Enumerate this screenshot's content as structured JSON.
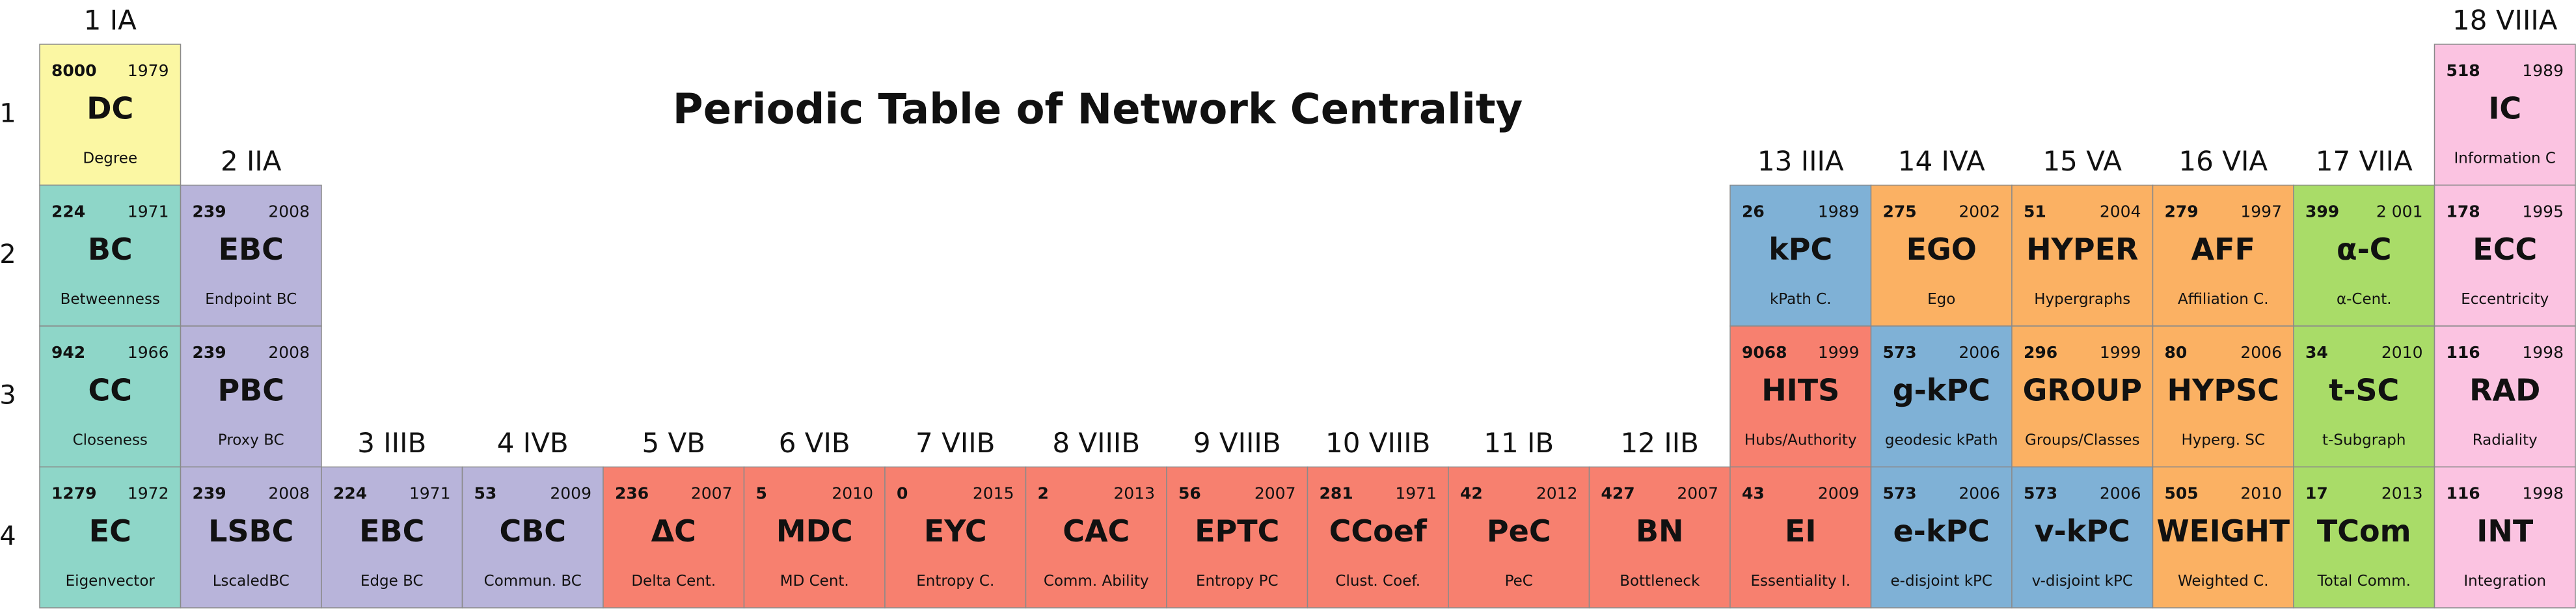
{
  "title": "Periodic Table of Network Centrality",
  "groups": [
    "1 IA",
    "2 IIA",
    "3 IIIB",
    "4 IVB",
    "5 VB",
    "6 VIB",
    "7 VIIB",
    "8 VIIIB",
    "9 VIIIB",
    "10 VIIIB",
    "11 IB",
    "12 IIB",
    "13 IIIA",
    "14 IVA",
    "15 VA",
    "16 VIA",
    "17 VIIA",
    "18 VIIIA"
  ],
  "periods": [
    {
      "label": 1,
      "cells": [
        {
          "count": 8000,
          "year": 1979,
          "symbol": "DC",
          "name": "Degree",
          "color": "#fbf7a3"
        },
        null,
        null,
        null,
        null,
        null,
        null,
        null,
        null,
        null,
        null,
        null,
        null,
        null,
        null,
        null,
        null,
        {
          "count": 518,
          "year": 1989,
          "symbol": "IC",
          "name": "Information C",
          "color": "#fbc3e1"
        }
      ]
    },
    {
      "label": 2,
      "cells": [
        {
          "count": 224,
          "year": 1971,
          "symbol": "BC",
          "name": "Betweenness",
          "color": "#8ed6c8"
        },
        {
          "count": 239,
          "year": 2008,
          "symbol": "EBC",
          "name": "Endpoint BC",
          "color": "#b8b4da"
        },
        null,
        null,
        null,
        null,
        null,
        null,
        null,
        null,
        null,
        null,
        {
          "count": 26,
          "year": 1989,
          "symbol": "kPC",
          "name": "kPath C.",
          "color": "#7fb1d6"
        },
        {
          "count": 275,
          "year": 2002,
          "symbol": "EGO",
          "name": "Ego",
          "color": "#fbb163"
        },
        {
          "count": 51,
          "year": 2004,
          "symbol": "HYPER",
          "name": "Hypergraphs",
          "color": "#fbb163"
        },
        {
          "count": 279,
          "year": 1997,
          "symbol": "AFF",
          "name": "Affiliation C.",
          "color": "#fbb163"
        },
        {
          "count": 399,
          "year": "2 001",
          "symbol": "α-C",
          "name": "α-Cent.",
          "color": "#a9dc68"
        },
        {
          "count": 178,
          "year": 1995,
          "symbol": "ECC",
          "name": "Eccentricity",
          "color": "#fbc3e1"
        }
      ]
    },
    {
      "label": 3,
      "cells": [
        {
          "count": 942,
          "year": 1966,
          "symbol": "CC",
          "name": "Closeness",
          "color": "#8ed6c8"
        },
        {
          "count": 239,
          "year": 2008,
          "symbol": "PBC",
          "name": "Proxy BC",
          "color": "#b8b4da"
        },
        null,
        null,
        null,
        null,
        null,
        null,
        null,
        null,
        null,
        null,
        {
          "count": 9068,
          "year": 1999,
          "symbol": "HITS",
          "name": "Hubs/Authority",
          "color": "#f7806f"
        },
        {
          "count": 573,
          "year": 2006,
          "symbol": "g-kPC",
          "name": "geodesic kPath",
          "color": "#7fb1d6"
        },
        {
          "count": 296,
          "year": 1999,
          "symbol": "GROUP",
          "name": "Groups/Classes",
          "color": "#fbb163"
        },
        {
          "count": 80,
          "year": 2006,
          "symbol": "HYPSC",
          "name": "Hyperg. SC",
          "color": "#fbb163"
        },
        {
          "count": 34,
          "year": 2010,
          "symbol": "t-SC",
          "name": "t-Subgraph",
          "color": "#a9dc68"
        },
        {
          "count": 116,
          "year": 1998,
          "symbol": "RAD",
          "name": "Radiality",
          "color": "#fbc3e1"
        }
      ]
    },
    {
      "label": 4,
      "cells": [
        {
          "count": 1279,
          "year": 1972,
          "symbol": "EC",
          "name": "Eigenvector",
          "color": "#8ed6c8"
        },
        {
          "count": 239,
          "year": 2008,
          "symbol": "LSBC",
          "name": "LscaledBC",
          "color": "#b8b4da"
        },
        {
          "count": 224,
          "year": 1971,
          "symbol": "EBC",
          "name": "Edge BC",
          "color": "#b8b4da"
        },
        {
          "count": 53,
          "year": 2009,
          "symbol": "CBC",
          "name": "Commun. BC",
          "color": "#b8b4da"
        },
        {
          "count": 236,
          "year": 2007,
          "symbol": "ΔC",
          "name": "Delta Cent.",
          "color": "#f7806f"
        },
        {
          "count": 5,
          "year": 2010,
          "symbol": "MDC",
          "name": "MD Cent.",
          "color": "#f7806f"
        },
        {
          "count": 0,
          "year": 2015,
          "symbol": "EYC",
          "name": "Entropy C.",
          "color": "#f7806f"
        },
        {
          "count": 2,
          "year": 2013,
          "symbol": "CAC",
          "name": "Comm. Ability",
          "color": "#f7806f"
        },
        {
          "count": 56,
          "year": 2007,
          "symbol": "EPTC",
          "name": "Entropy PC",
          "color": "#f7806f"
        },
        {
          "count": 281,
          "year": 1971,
          "symbol": "CCoef",
          "name": "Clust. Coef.",
          "color": "#f7806f"
        },
        {
          "count": 42,
          "year": 2012,
          "symbol": "PeC",
          "name": "PeC",
          "color": "#f7806f"
        },
        {
          "count": 427,
          "year": 2007,
          "symbol": "BN",
          "name": "Bottleneck",
          "color": "#f7806f"
        },
        {
          "count": 43,
          "year": 2009,
          "symbol": "EI",
          "name": "Essentiality I.",
          "color": "#f7806f"
        },
        {
          "count": 573,
          "year": 2006,
          "symbol": "e-kPC",
          "name": "e-disjoint kPC",
          "color": "#7fb1d6"
        },
        {
          "count": 573,
          "year": 2006,
          "symbol": "v-kPC",
          "name": "v-disjoint kPC",
          "color": "#7fb1d6"
        },
        {
          "count": 505,
          "year": 2010,
          "symbol": "WEIGHT",
          "name": "Weighted C.",
          "color": "#fbb163"
        },
        {
          "count": 17,
          "year": 2013,
          "symbol": "TCom",
          "name": "Total Comm.",
          "color": "#a9dc68"
        },
        {
          "count": 116,
          "year": 1998,
          "symbol": "INT",
          "name": "Integration",
          "color": "#fbc3e1"
        }
      ]
    }
  ]
}
